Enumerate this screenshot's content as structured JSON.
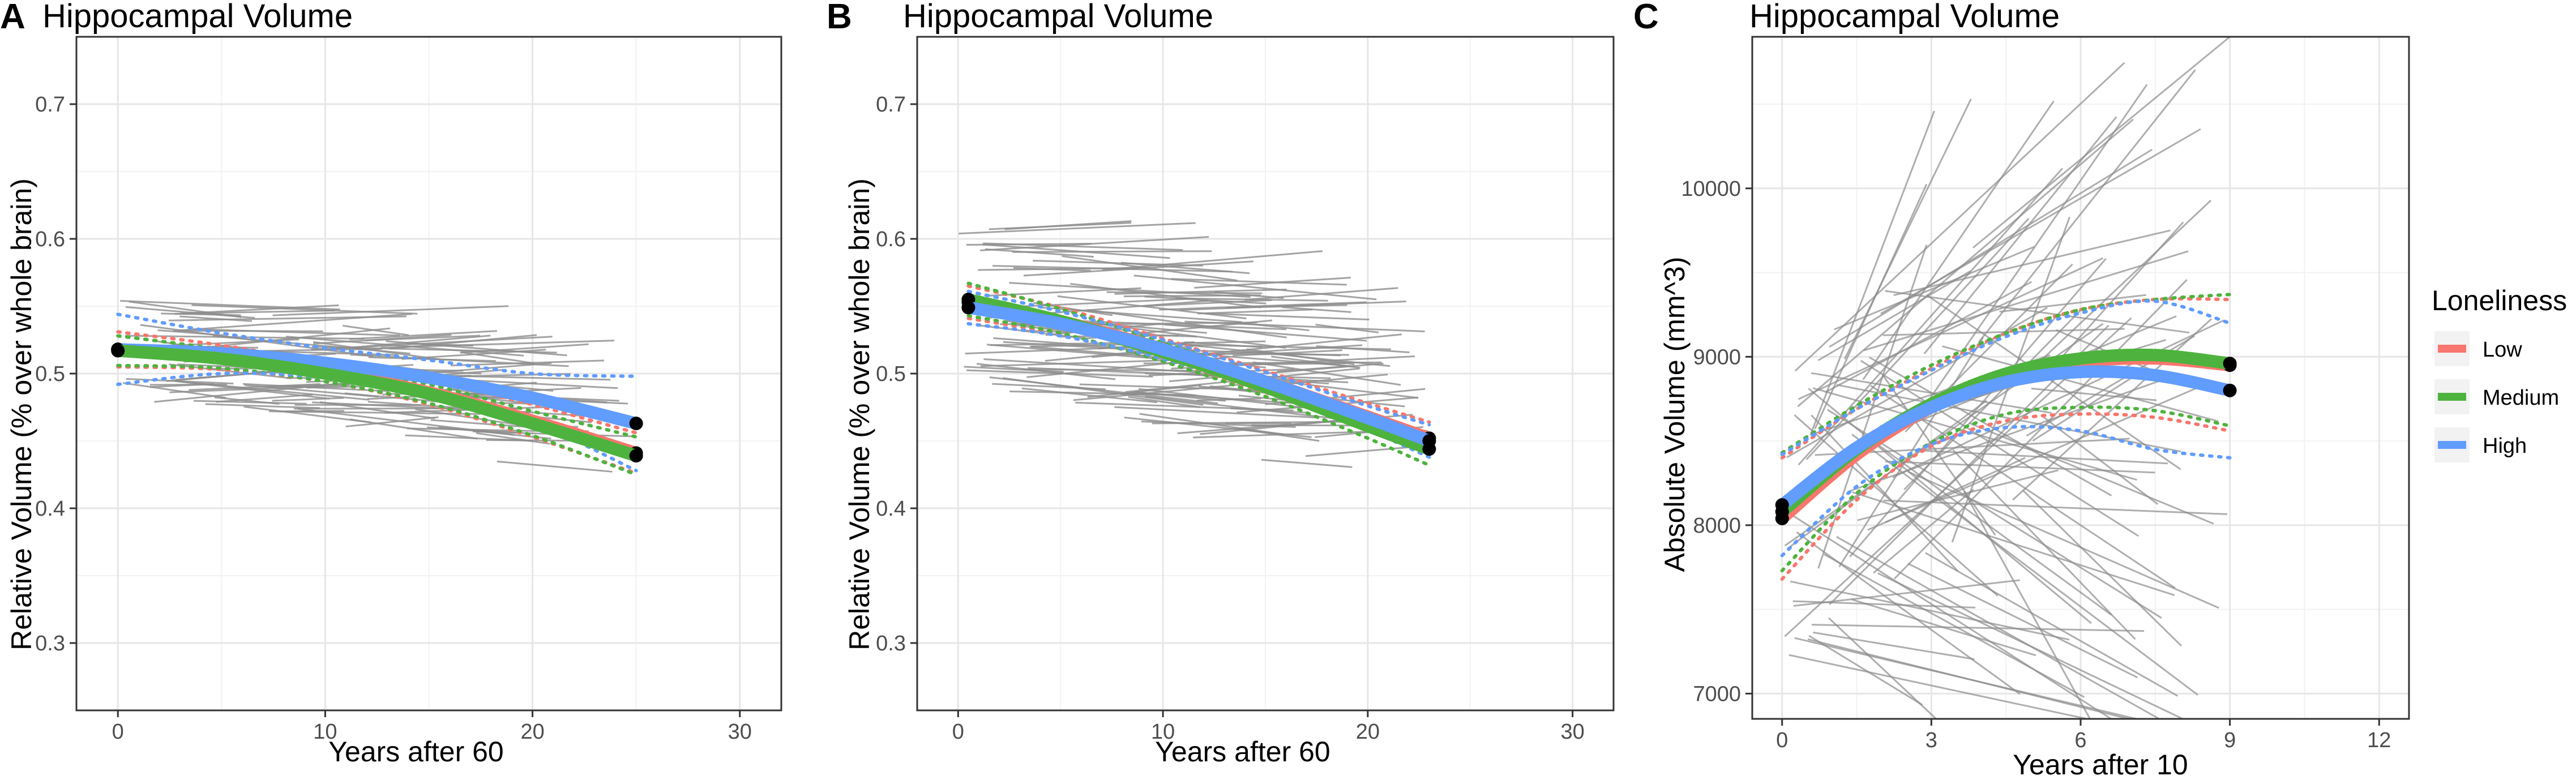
{
  "colors": {
    "Low": "#F8766D",
    "Medium": "#4DB33E",
    "High": "#619CFF"
  },
  "legend": {
    "title": "Loneliness",
    "items": [
      "Low",
      "Medium",
      "High"
    ]
  },
  "chart_data": [
    {
      "panel": "A",
      "type": "line",
      "title": "Hippocampal Volume",
      "xlabel": "Years after 60",
      "ylabel": "Relative Volume (% over whole brain)",
      "xlim": [
        -2,
        32
      ],
      "ylim": [
        0.25,
        0.75
      ],
      "xticks": [
        0,
        10,
        20,
        30
      ],
      "yticks": [
        0.3,
        0.4,
        0.5,
        0.6,
        0.7
      ],
      "series": [
        {
          "name": "Low",
          "x": [
            0,
            5,
            10,
            15,
            20,
            25
          ],
          "values": [
            0.518,
            0.512,
            0.501,
            0.486,
            0.465,
            0.441
          ],
          "ci_low": [
            0.505,
            0.503,
            0.494,
            0.477,
            0.453,
            0.426
          ],
          "ci_high": [
            0.531,
            0.521,
            0.508,
            0.495,
            0.477,
            0.456
          ]
        },
        {
          "name": "Medium",
          "x": [
            0,
            5,
            10,
            15,
            20,
            25
          ],
          "values": [
            0.517,
            0.511,
            0.5,
            0.485,
            0.463,
            0.439
          ],
          "ci_low": [
            0.506,
            0.504,
            0.494,
            0.478,
            0.454,
            0.425
          ],
          "ci_high": [
            0.528,
            0.518,
            0.506,
            0.492,
            0.472,
            0.453
          ]
        },
        {
          "name": "High",
          "x": [
            0,
            5,
            10,
            15,
            20,
            25
          ],
          "values": [
            0.518,
            0.515,
            0.508,
            0.497,
            0.482,
            0.463
          ],
          "ci_low": [
            0.492,
            0.5,
            0.497,
            0.484,
            0.464,
            0.428
          ],
          "ci_high": [
            0.544,
            0.53,
            0.519,
            0.51,
            0.5,
            0.498
          ]
        }
      ]
    },
    {
      "panel": "B",
      "type": "line",
      "title": "Hippocampal Volume",
      "xlabel": "Years after 60",
      "ylabel": "Relative Volume (% over whole brain)",
      "xlim": [
        -2,
        32
      ],
      "ylim": [
        0.25,
        0.75
      ],
      "xticks": [
        0,
        10,
        20,
        30
      ],
      "yticks": [
        0.3,
        0.4,
        0.5,
        0.6,
        0.7
      ],
      "series": [
        {
          "name": "Low",
          "x": [
            0.5,
            5,
            10,
            15,
            20,
            23
          ],
          "values": [
            0.553,
            0.539,
            0.518,
            0.494,
            0.468,
            0.452
          ],
          "ci_low": [
            0.541,
            0.529,
            0.51,
            0.486,
            0.458,
            0.44
          ],
          "ci_high": [
            0.565,
            0.549,
            0.526,
            0.502,
            0.478,
            0.464
          ]
        },
        {
          "name": "Medium",
          "x": [
            0.5,
            5,
            10,
            15,
            20,
            23
          ],
          "values": [
            0.555,
            0.539,
            0.516,
            0.49,
            0.461,
            0.444
          ],
          "ci_low": [
            0.543,
            0.53,
            0.509,
            0.483,
            0.452,
            0.432
          ],
          "ci_high": [
            0.567,
            0.548,
            0.523,
            0.497,
            0.47,
            0.456
          ]
        },
        {
          "name": "High",
          "x": [
            0.5,
            5,
            10,
            15,
            20,
            23
          ],
          "values": [
            0.549,
            0.537,
            0.518,
            0.494,
            0.467,
            0.45
          ],
          "ci_low": [
            0.537,
            0.528,
            0.511,
            0.487,
            0.458,
            0.438
          ],
          "ci_high": [
            0.561,
            0.546,
            0.525,
            0.501,
            0.476,
            0.462
          ]
        }
      ]
    },
    {
      "panel": "C",
      "type": "line",
      "title": "Hippocampal Volume",
      "xlabel": "Years after 10",
      "ylabel": "Absolute Volume (mm^3)",
      "xlim": [
        -0.6,
        12.6
      ],
      "ylim": [
        6850,
        10900
      ],
      "xticks": [
        0,
        3,
        6,
        9,
        12
      ],
      "yticks": [
        7000,
        8000,
        9000,
        10000
      ],
      "series": [
        {
          "name": "Low",
          "x": [
            0,
            1.5,
            3,
            4.5,
            6,
            7.5,
            9
          ],
          "values": [
            8040,
            8420,
            8700,
            8880,
            8970,
            8990,
            8950
          ],
          "ci_low": [
            7680,
            8150,
            8470,
            8620,
            8660,
            8640,
            8560
          ],
          "ci_high": [
            8400,
            8690,
            8930,
            9140,
            9280,
            9340,
            9340
          ]
        },
        {
          "name": "Medium",
          "x": [
            0,
            1.5,
            3,
            4.5,
            6,
            7.5,
            9
          ],
          "values": [
            8080,
            8450,
            8720,
            8900,
            8990,
            9010,
            8960
          ],
          "ci_low": [
            7730,
            8190,
            8490,
            8660,
            8700,
            8680,
            8590
          ],
          "ci_high": [
            8430,
            8710,
            8950,
            9140,
            9280,
            9340,
            9370
          ]
        },
        {
          "name": "High",
          "x": [
            0,
            1.5,
            3,
            4.5,
            6,
            7.5,
            9
          ],
          "values": [
            8120,
            8460,
            8700,
            8850,
            8910,
            8890,
            8800
          ],
          "ci_low": [
            7820,
            8230,
            8480,
            8580,
            8560,
            8450,
            8400
          ],
          "ci_high": [
            8420,
            8690,
            8920,
            9120,
            9260,
            9330,
            9200
          ]
        }
      ]
    }
  ]
}
